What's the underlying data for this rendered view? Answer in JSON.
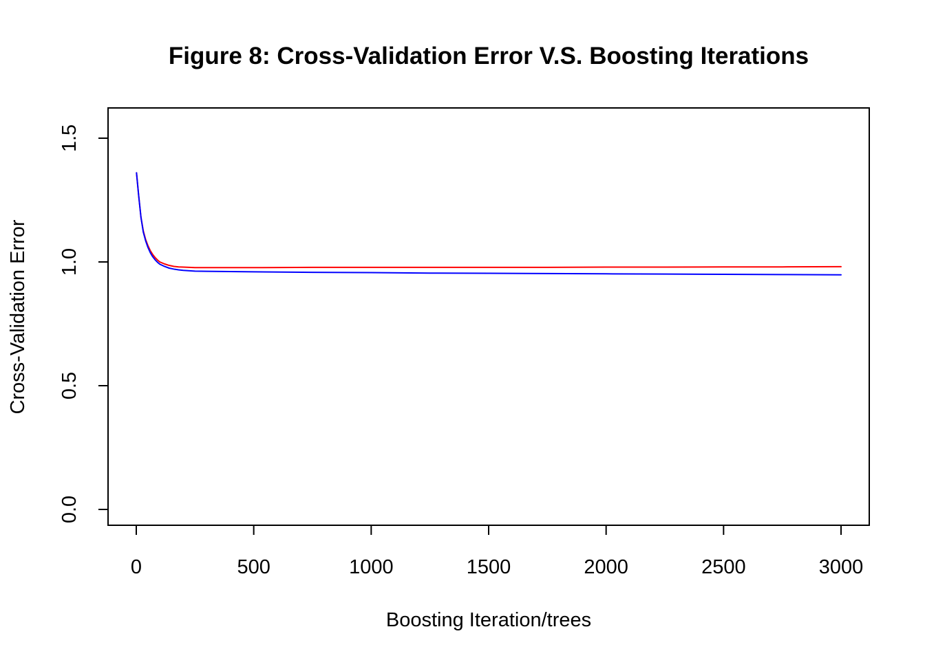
{
  "chart_data": {
    "type": "line",
    "title": "Figure 8: Cross-Validation Error V.S. Boosting Iterations",
    "xlabel": "Boosting Iteration/trees",
    "ylabel": "Cross-Validation Error",
    "xlim": [
      0,
      3000
    ],
    "ylim": [
      0,
      1.6
    ],
    "x_ticks": [
      0,
      500,
      1000,
      1500,
      2000,
      2500,
      3000
    ],
    "x_tick_labels": [
      "0",
      "500",
      "1000",
      "1500",
      "2000",
      "2500",
      "3000"
    ],
    "y_ticks": [
      0.0,
      0.5,
      1.0,
      1.5
    ],
    "y_tick_labels": [
      "0.0",
      "0.5",
      "1.0",
      "1.5"
    ],
    "grid": false,
    "legend": "none",
    "series": [
      {
        "color": "#ff0000",
        "x": [
          1,
          10,
          20,
          30,
          40,
          50,
          60,
          70,
          80,
          90,
          100,
          120,
          140,
          160,
          180,
          200,
          250,
          300,
          400,
          500,
          750,
          1000,
          1250,
          1500,
          1750,
          2000,
          2250,
          2500,
          2750,
          3000
        ],
        "values": [
          1.36,
          1.27,
          1.18,
          1.125,
          1.09,
          1.065,
          1.045,
          1.03,
          1.018,
          1.008,
          1.0,
          0.992,
          0.986,
          0.982,
          0.98,
          0.979,
          0.977,
          0.977,
          0.977,
          0.977,
          0.978,
          0.978,
          0.978,
          0.978,
          0.978,
          0.979,
          0.979,
          0.98,
          0.98,
          0.981
        ]
      },
      {
        "color": "#0000ff",
        "x": [
          1,
          10,
          20,
          30,
          40,
          50,
          60,
          70,
          80,
          90,
          100,
          120,
          140,
          160,
          180,
          200,
          250,
          300,
          400,
          500,
          750,
          1000,
          1250,
          1500,
          1750,
          2000,
          2250,
          2500,
          2750,
          3000
        ],
        "values": [
          1.36,
          1.27,
          1.18,
          1.12,
          1.085,
          1.058,
          1.037,
          1.021,
          1.009,
          0.999,
          0.991,
          0.982,
          0.975,
          0.971,
          0.968,
          0.966,
          0.963,
          0.962,
          0.961,
          0.96,
          0.958,
          0.957,
          0.955,
          0.954,
          0.953,
          0.952,
          0.951,
          0.95,
          0.949,
          0.948
        ]
      }
    ]
  }
}
